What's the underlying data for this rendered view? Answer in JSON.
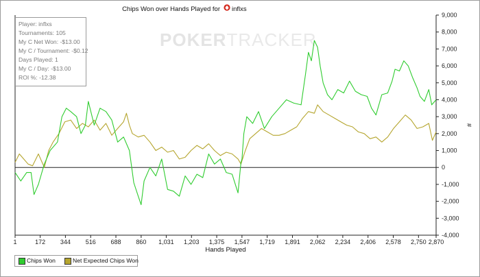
{
  "title_prefix": "Chips Won over Hands Played for",
  "title_player": "inflxs",
  "stats": [
    "Player: inflxs",
    "Tournaments: 105",
    "My C Net Won: -$13.00",
    "My C / Tournament: -$0.12",
    "Days Played: 1",
    "My C / Day: -$13.00",
    "ROI %: -12.38"
  ],
  "watermark": {
    "part1": "POKER",
    "part2": "TRACKER"
  },
  "colors": {
    "chips_won": "#2fcc2f",
    "net_expected": "#b5a52e",
    "zero_line": "#222222"
  },
  "chart_data": {
    "type": "line",
    "title": "Chips Won over Hands Played for inflxs",
    "xlabel": "Hands Played",
    "ylabel": "#",
    "xlim": [
      1,
      2870
    ],
    "ylim": [
      -4000,
      9000
    ],
    "x_ticks": [
      "1",
      "172",
      "344",
      "516",
      "688",
      "860",
      "1,031",
      "1,203",
      "1,375",
      "1,547",
      "1,719",
      "1,891",
      "2,062",
      "2,234",
      "2,406",
      "2,578",
      "2,750",
      "2,870"
    ],
    "x_tick_values": [
      1,
      172,
      344,
      516,
      688,
      860,
      1031,
      1203,
      1375,
      1547,
      1719,
      1891,
      2062,
      2234,
      2406,
      2578,
      2750,
      2870
    ],
    "y_ticks": [
      "-4,000",
      "-3,000",
      "-2,000",
      "-1,000",
      "0",
      "1,000",
      "2,000",
      "3,000",
      "4,000",
      "5,000",
      "6,000",
      "7,000",
      "8,000",
      "9,000"
    ],
    "y_tick_values": [
      -4000,
      -3000,
      -2000,
      -1000,
      0,
      1000,
      2000,
      3000,
      4000,
      5000,
      6000,
      7000,
      8000,
      9000
    ],
    "y_axis_side": "right",
    "grid": false,
    "legend_position": "bottom-left",
    "series": [
      {
        "name": "Chips Won",
        "color": "#2fcc2f",
        "x": [
          1,
          40,
          80,
          110,
          130,
          160,
          200,
          240,
          290,
          320,
          350,
          380,
          420,
          450,
          480,
          500,
          540,
          580,
          620,
          660,
          700,
          740,
          780,
          810,
          840,
          860,
          880,
          920,
          960,
          1000,
          1040,
          1080,
          1120,
          1160,
          1200,
          1240,
          1280,
          1320,
          1360,
          1400,
          1440,
          1480,
          1520,
          1540,
          1547,
          1560,
          1580,
          1620,
          1660,
          1700,
          1750,
          1800,
          1850,
          1900,
          1950,
          1980,
          2000,
          2020,
          2040,
          2062,
          2080,
          2100,
          2130,
          2160,
          2200,
          2240,
          2280,
          2320,
          2360,
          2400,
          2430,
          2460,
          2500,
          2540,
          2570,
          2590,
          2620,
          2650,
          2680,
          2710,
          2740,
          2760,
          2790,
          2820,
          2840,
          2870
        ],
        "y": [
          -300,
          -800,
          -300,
          -300,
          -1600,
          -1000,
          200,
          1000,
          1500,
          3000,
          3500,
          3300,
          3000,
          2000,
          2500,
          3900,
          2500,
          3500,
          3300,
          2800,
          1500,
          1800,
          1000,
          -900,
          -1700,
          -2200,
          -800,
          0,
          -500,
          500,
          -1300,
          -1400,
          -1700,
          -500,
          -1000,
          -400,
          -600,
          800,
          200,
          500,
          -300,
          -400,
          -1500,
          300,
          500,
          2000,
          3000,
          2600,
          3300,
          2300,
          3000,
          3500,
          4000,
          3800,
          3700,
          5500,
          6800,
          6300,
          7500,
          7100,
          6000,
          5000,
          4300,
          4000,
          4600,
          4400,
          5100,
          4500,
          4300,
          4200,
          3500,
          3100,
          4300,
          4400,
          5100,
          5800,
          5700,
          6300,
          6000,
          5300,
          4700,
          4200,
          3900,
          4600,
          3700,
          4000
        ]
      },
      {
        "name": "Net Expected Chips Won",
        "color": "#b5a52e",
        "x": [
          1,
          30,
          60,
          90,
          120,
          160,
          200,
          230,
          260,
          300,
          340,
          380,
          420,
          460,
          500,
          540,
          580,
          620,
          660,
          700,
          740,
          760,
          780,
          800,
          840,
          880,
          920,
          960,
          1000,
          1040,
          1080,
          1120,
          1160,
          1200,
          1240,
          1280,
          1320,
          1360,
          1400,
          1440,
          1480,
          1520,
          1540,
          1547,
          1570,
          1600,
          1640,
          1680,
          1720,
          1760,
          1800,
          1840,
          1880,
          1920,
          1960,
          2000,
          2040,
          2062,
          2100,
          2140,
          2180,
          2220,
          2260,
          2300,
          2340,
          2380,
          2420,
          2460,
          2500,
          2540,
          2580,
          2620,
          2660,
          2700,
          2740,
          2780,
          2820,
          2845,
          2870
        ],
        "y": [
          300,
          800,
          500,
          200,
          100,
          800,
          0,
          1000,
          1500,
          2000,
          2700,
          2800,
          2300,
          2600,
          2400,
          2800,
          2200,
          2600,
          1900,
          2300,
          2700,
          3200,
          2500,
          2000,
          1800,
          1900,
          1500,
          1000,
          1200,
          900,
          1000,
          500,
          600,
          1000,
          1300,
          1100,
          1400,
          1000,
          700,
          900,
          800,
          500,
          200,
          400,
          1000,
          1700,
          2000,
          2300,
          2100,
          1900,
          1900,
          2000,
          2200,
          2400,
          2900,
          3300,
          3200,
          3700,
          3300,
          3100,
          2900,
          2700,
          2500,
          2400,
          2100,
          2000,
          1700,
          1800,
          1500,
          1800,
          2300,
          2700,
          3100,
          2800,
          2300,
          2400,
          2600,
          1600,
          2100
        ]
      }
    ]
  }
}
